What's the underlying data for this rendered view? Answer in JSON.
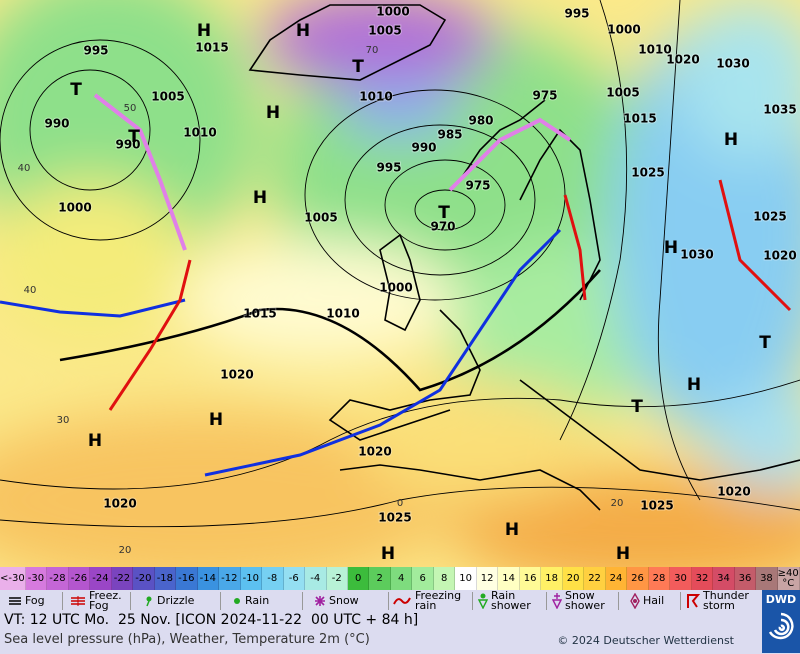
{
  "map": {
    "pressure_labels": [
      "1000",
      "1005",
      "995",
      "1000",
      "1010",
      "1020",
      "1030",
      "1035",
      "1015",
      "995",
      "1005",
      "990",
      "990",
      "1010",
      "1000",
      "1010",
      "985",
      "980",
      "975",
      "1005",
      "1015",
      "990",
      "995",
      "975",
      "970",
      "1005",
      "1025",
      "1030",
      "1025",
      "1020",
      "1000",
      "1015",
      "1010",
      "1020",
      "1020",
      "1025",
      "1020",
      "1020",
      "1025"
    ],
    "centers": [
      "H",
      "H",
      "T",
      "T",
      "H",
      "T",
      "H",
      "T",
      "H",
      "H",
      "H",
      "H",
      "T",
      "H",
      "T",
      "H",
      "H",
      "H"
    ],
    "temperature_labels": [
      "50",
      "40",
      "40",
      "30",
      "20",
      "0",
      "20",
      "70"
    ]
  },
  "temperature_scale": [
    {
      "label": "<-30",
      "color": "#eab0ea"
    },
    {
      "label": "-30",
      "color": "#d67ade"
    },
    {
      "label": "-28",
      "color": "#c466d6"
    },
    {
      "label": "-26",
      "color": "#b456ce"
    },
    {
      "label": "-24",
      "color": "#9a46c6"
    },
    {
      "label": "-22",
      "color": "#7a44be"
    },
    {
      "label": "-20",
      "color": "#5a52c4"
    },
    {
      "label": "-18",
      "color": "#4a64cc"
    },
    {
      "label": "-16",
      "color": "#3a78d4"
    },
    {
      "label": "-14",
      "color": "#3a92e0"
    },
    {
      "label": "-12",
      "color": "#4aa8e8"
    },
    {
      "label": "-10",
      "color": "#5cc0f0"
    },
    {
      "label": "-8",
      "color": "#76d0f2"
    },
    {
      "label": "-6",
      "color": "#94dff2"
    },
    {
      "label": "-4",
      "color": "#a8eae4"
    },
    {
      "label": "-2",
      "color": "#b8f2d6"
    },
    {
      "label": "0",
      "color": "#3cbc3c"
    },
    {
      "label": "2",
      "color": "#5ccc5c"
    },
    {
      "label": "4",
      "color": "#7edc7e"
    },
    {
      "label": "6",
      "color": "#a2ec9c"
    },
    {
      "label": "8",
      "color": "#c4f6b4"
    },
    {
      "label": "10",
      "color": "#ffffff"
    },
    {
      "label": "12",
      "color": "#ffffe2"
    },
    {
      "label": "14",
      "color": "#ffffc2"
    },
    {
      "label": "16",
      "color": "#fffa96"
    },
    {
      "label": "18",
      "color": "#fff066"
    },
    {
      "label": "20",
      "color": "#ffe046"
    },
    {
      "label": "22",
      "color": "#ffd040"
    },
    {
      "label": "24",
      "color": "#ffb434"
    },
    {
      "label": "26",
      "color": "#ff9644"
    },
    {
      "label": "28",
      "color": "#ff7a56"
    },
    {
      "label": "30",
      "color": "#f25c5c"
    },
    {
      "label": "32",
      "color": "#e44c5a"
    },
    {
      "label": "34",
      "color": "#d44c66"
    },
    {
      "label": "36",
      "color": "#c45c6a"
    },
    {
      "label": "38",
      "color": "#a87878"
    },
    {
      "label": "≥40 °C",
      "color": "#c8a4a4"
    }
  ],
  "legend": [
    "Fog",
    "Freez. Fog",
    "Drizzle",
    "Rain",
    "Snow",
    "Freezing rain",
    "Rain shower",
    "Snow shower",
    "Hail",
    "Thunder storm"
  ],
  "footer": {
    "valid_time": "VT: 12 UTC Mo.  25 Nov. [ICON 2024-11-22  00 UTC + 84 h]",
    "description": "Sea level pressure (hPa), Weather, Temperature 2m (°C)",
    "copyright": "© 2024 Deutscher Wetterdienst",
    "logo": "DWD"
  }
}
